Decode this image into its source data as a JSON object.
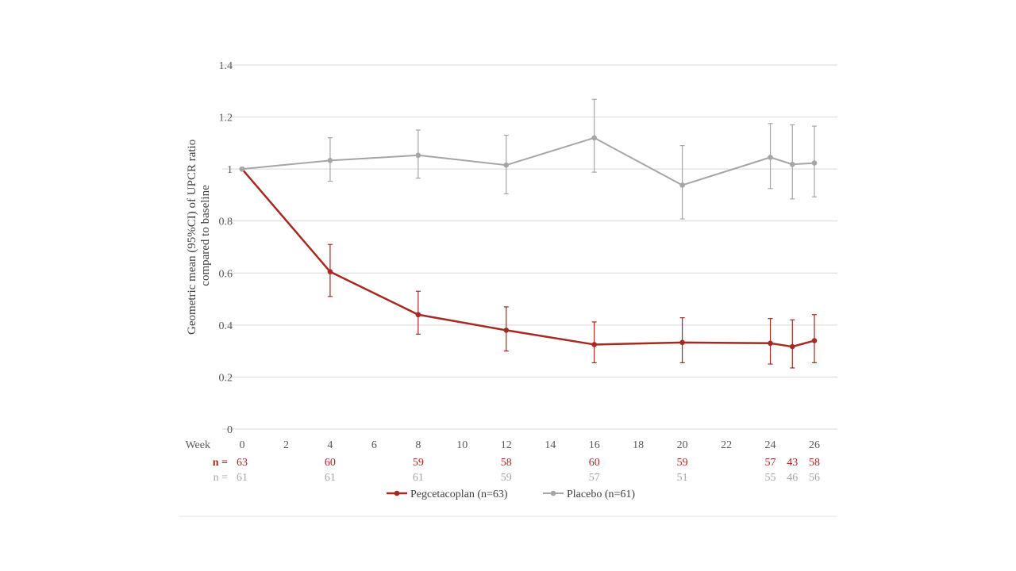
{
  "chart_data": {
    "type": "line",
    "title": "",
    "xlabel": "Week",
    "ylabel_lines": [
      "Geometric mean (95%CI) of UPCR ratio",
      "compared to baseline"
    ],
    "xlim": [
      0,
      26
    ],
    "ylim": [
      0,
      1.4
    ],
    "x_ticks": [
      0,
      2,
      4,
      6,
      8,
      10,
      12,
      14,
      16,
      18,
      20,
      22,
      24,
      26
    ],
    "x_tick_labels": [
      "0",
      "2",
      "4",
      "6",
      "8",
      "10",
      "12",
      "14",
      "16",
      "18",
      "20",
      "22",
      "24",
      "26"
    ],
    "y_ticks": [
      0,
      0.2,
      0.4,
      0.6,
      0.8,
      1,
      1.2,
      1.4
    ],
    "y_tick_labels": [
      "0",
      "0.2",
      "0.4",
      "0.6",
      "0.8",
      "1",
      "1.2",
      "1.4"
    ],
    "grid": true,
    "legend_position": "bottom",
    "series": [
      {
        "name": "Pegcetacoplan (n=63)",
        "color": "#A52A22",
        "x": [
          0,
          4,
          8,
          12,
          16,
          20,
          24,
          25,
          26
        ],
        "y": [
          1.0,
          0.605,
          0.44,
          0.38,
          0.325,
          0.333,
          0.33,
          0.317,
          0.34
        ],
        "ci_low": [
          1.0,
          0.51,
          0.365,
          0.3,
          0.255,
          0.255,
          0.25,
          0.235,
          0.255
        ],
        "ci_high": [
          1.0,
          0.71,
          0.53,
          0.47,
          0.412,
          0.428,
          0.425,
          0.42,
          0.44
        ]
      },
      {
        "name": "Placebo (n=61)",
        "color": "#A6A6A6",
        "x": [
          0,
          4,
          8,
          12,
          16,
          20,
          24,
          25,
          26
        ],
        "y": [
          1.0,
          1.033,
          1.053,
          1.015,
          1.12,
          0.938,
          1.045,
          1.018,
          1.023
        ],
        "ci_low": [
          1.0,
          0.953,
          0.965,
          0.905,
          0.988,
          0.808,
          0.925,
          0.885,
          0.893
        ],
        "ci_high": [
          1.0,
          1.12,
          1.15,
          1.13,
          1.268,
          1.09,
          1.175,
          1.17,
          1.165
        ]
      }
    ],
    "counts": [
      {
        "label": "n =",
        "color": "#A52A22",
        "x": [
          0,
          4,
          8,
          12,
          16,
          20,
          24,
          25,
          26
        ],
        "values": [
          "63",
          "60",
          "59",
          "58",
          "60",
          "59",
          "57",
          "43",
          "58"
        ]
      },
      {
        "label": "n =",
        "color": "#A6A6A6",
        "x": [
          0,
          4,
          8,
          12,
          16,
          20,
          24,
          25,
          26
        ],
        "values": [
          "61",
          "61",
          "61",
          "59",
          "57",
          "51",
          "55",
          "46",
          "56"
        ]
      }
    ]
  }
}
